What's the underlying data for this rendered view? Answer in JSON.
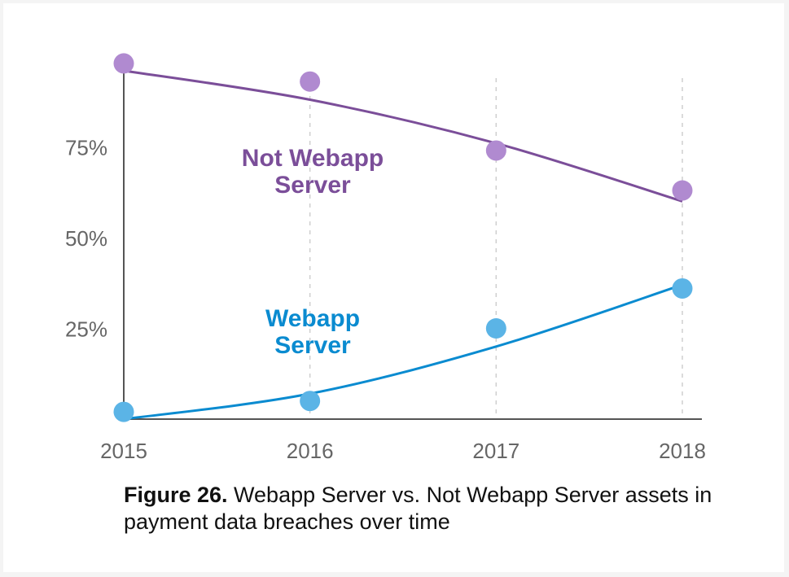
{
  "chart_data": {
    "type": "scatter",
    "x": [
      "2015",
      "2016",
      "2017",
      "2018"
    ],
    "series": [
      {
        "name": "Not Webapp Server",
        "name_lines": [
          "Not Webapp",
          "Server"
        ],
        "values": [
          0.98,
          0.93,
          0.74,
          0.63
        ],
        "color": "#b08ad0",
        "line_color": "#7b4e99"
      },
      {
        "name": "Webapp Server",
        "name_lines": [
          "Webapp",
          "Server"
        ],
        "values": [
          0.02,
          0.05,
          0.25,
          0.36
        ],
        "color": "#5bb4e6",
        "line_color": "#0a8bd0"
      }
    ],
    "trend_lines": [
      {
        "series": "Not Webapp Server",
        "values": [
          0.96,
          0.88,
          0.76,
          0.6
        ]
      },
      {
        "series": "Webapp Server",
        "values": [
          0.0,
          0.07,
          0.2,
          0.37
        ]
      }
    ],
    "yticks": [
      {
        "value": 0.25,
        "label": "25%"
      },
      {
        "value": 0.5,
        "label": "50%"
      },
      {
        "value": 0.75,
        "label": "75%"
      }
    ],
    "ylim": [
      0,
      1
    ],
    "grid": "vertical-dashed",
    "legend": "inline"
  },
  "caption": {
    "figure_label": "Figure 26.",
    "text": " Webapp Server vs. Not Webapp Server assets in payment data breaches over time"
  }
}
